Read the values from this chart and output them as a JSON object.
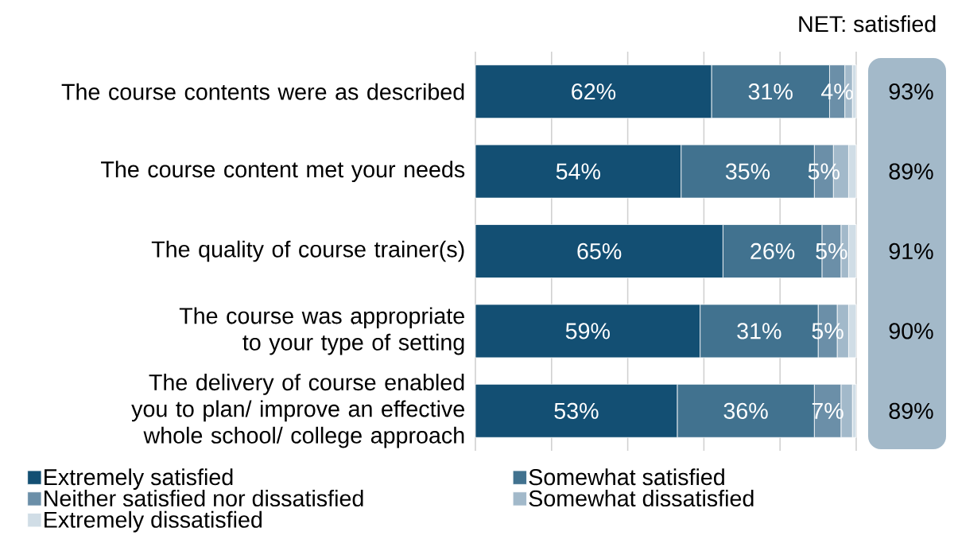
{
  "chart_data": {
    "type": "bar",
    "orientation": "horizontal",
    "stacked": true,
    "categories": [
      "The course contents were as described",
      "The course content met your needs",
      "The quality of course trainer(s)",
      "The course was appropriate to your type of setting",
      "The delivery of course enabled you to plan/ improve an effective whole school/ college approach"
    ],
    "series": [
      {
        "name": "Extremely satisfied",
        "color": "#134f73",
        "values": [
          62,
          54,
          65,
          59,
          53
        ],
        "value_labels": [
          "62%",
          "54%",
          "65%",
          "59%",
          "53%"
        ]
      },
      {
        "name": "Somewhat satisfied",
        "color": "#41728f",
        "values": [
          31,
          35,
          26,
          31,
          36
        ],
        "value_labels": [
          "31%",
          "35%",
          "26%",
          "31%",
          "36%"
        ]
      },
      {
        "name": "Neither satisfied nor dissatisfied",
        "color": "#6b8fa8",
        "values": [
          4,
          5,
          5,
          5,
          7
        ],
        "value_labels": [
          "4%",
          "5%",
          "5%",
          "5%",
          "7%"
        ]
      },
      {
        "name": "Somewhat dissatisfied",
        "color": "#a2b9ca",
        "values": [
          2,
          4,
          2,
          3,
          3
        ]
      },
      {
        "name": "Extremely dissatisfied",
        "color": "#d0dde6",
        "values": [
          1,
          2,
          2,
          2,
          1
        ]
      }
    ],
    "xlim": [
      0,
      100
    ],
    "xticks": [
      {
        "value": 0,
        "label": null
      },
      {
        "value": 20,
        "label": null
      },
      {
        "value": 40,
        "label": null
      },
      {
        "value": 60,
        "label": null
      },
      {
        "value": 80,
        "label": null
      },
      {
        "value": 100,
        "label": null
      }
    ],
    "tick_labels": "y",
    "grid": "x",
    "legend": "bottom",
    "annotations": [
      "NET: satisfied",
      "93%",
      "89%",
      "91%",
      "90%",
      "89%"
    ]
  }
}
